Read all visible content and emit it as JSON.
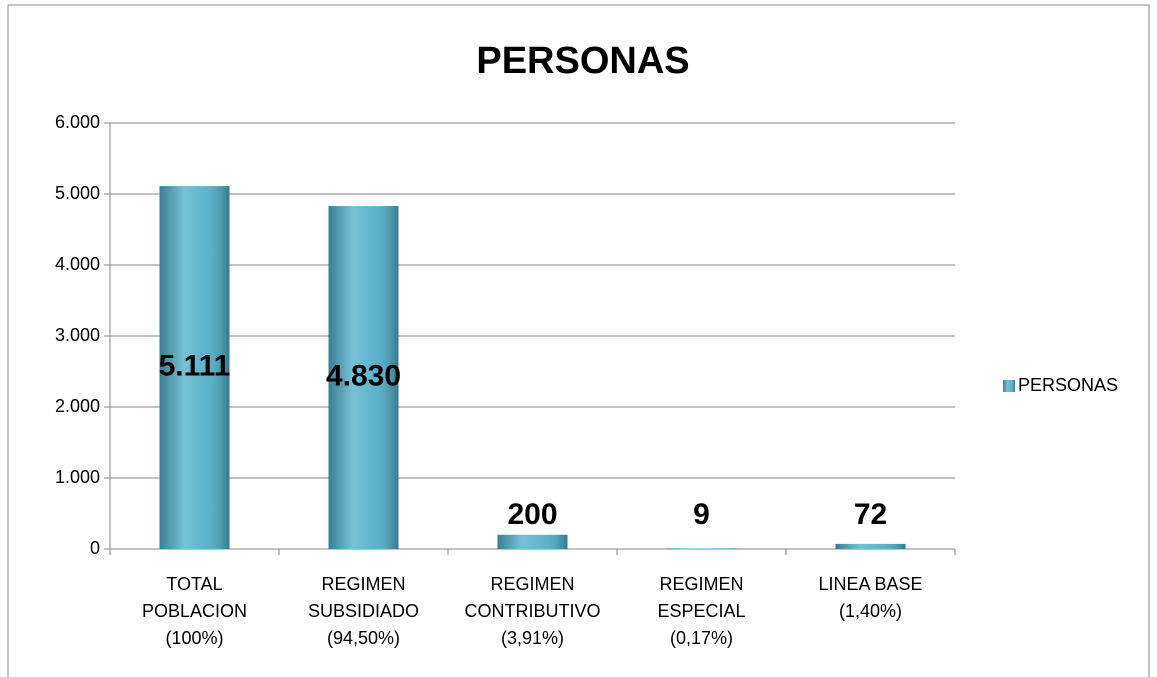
{
  "chart_data": {
    "type": "bar",
    "title": "PERSONAS",
    "categories": [
      [
        "TOTAL",
        "POBLACION",
        "(100%)"
      ],
      [
        "REGIMEN",
        "SUBSIDIADO",
        "(94,50%)"
      ],
      [
        "REGIMEN",
        "CONTRIBUTIVO",
        "(3,91%)"
      ],
      [
        "REGIMEN",
        "ESPECIAL",
        "(0,17%)"
      ],
      [
        "LINEA BASE",
        "(1,40%)"
      ]
    ],
    "series": [
      {
        "name": "PERSONAS",
        "color": "#4bacc6",
        "values": [
          5111,
          4830,
          200,
          9,
          72
        ],
        "value_labels": [
          "5.111",
          "4.830",
          "200",
          "9",
          "72"
        ]
      }
    ],
    "ylim": [
      0,
      6000
    ],
    "yticks": [
      0,
      {
        "value": 1000,
        "label": "1.000"
      },
      {
        "value": 2000,
        "label": "2.000"
      },
      {
        "value": 3000,
        "label": "3.000"
      },
      {
        "value": 4000,
        "label": "4.000"
      },
      {
        "value": 5000,
        "label": "5.000"
      },
      {
        "value": 6000,
        "label": "6.000"
      }
    ],
    "grid": true,
    "legend": "right"
  }
}
